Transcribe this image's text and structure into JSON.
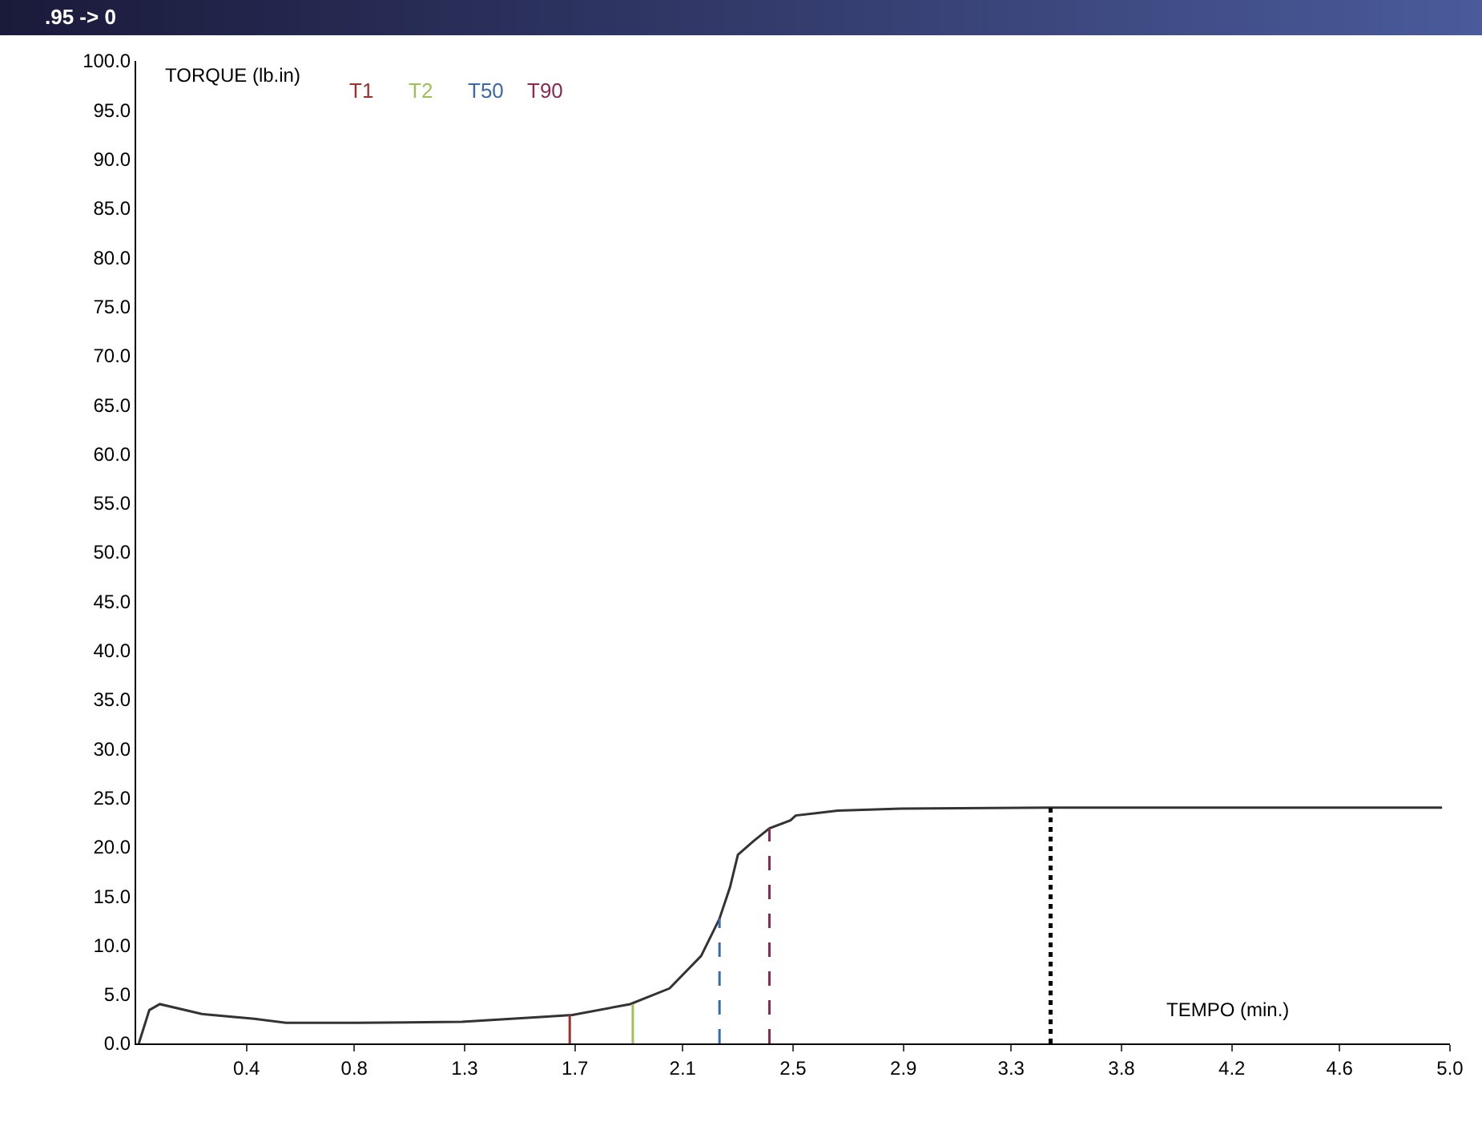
{
  "chart_data": {
    "type": "line",
    "title": ".95 -> 0",
    "xlabel": "TEMPO (min.)",
    "ylabel": "TORQUE (lb.in)",
    "xlim": [
      0,
      5.0
    ],
    "ylim": [
      0,
      100
    ],
    "xticks": [
      {
        "value": 0.42,
        "label": "0.4"
      },
      {
        "value": 0.83,
        "label": "0.8"
      },
      {
        "value": 1.25,
        "label": "1.3"
      },
      {
        "value": 1.67,
        "label": "1.7"
      },
      {
        "value": 2.08,
        "label": "2.1"
      },
      {
        "value": 2.5,
        "label": "2.5"
      },
      {
        "value": 2.92,
        "label": "2.9"
      },
      {
        "value": 3.33,
        "label": "3.3"
      },
      {
        "value": 3.75,
        "label": "3.8"
      },
      {
        "value": 4.17,
        "label": "4.2"
      },
      {
        "value": 4.58,
        "label": "4.6"
      },
      {
        "value": 5.0,
        "label": "5.0"
      }
    ],
    "yticks": [
      {
        "value": 0,
        "label": "0.0"
      },
      {
        "value": 5,
        "label": "5.0"
      },
      {
        "value": 10,
        "label": "10.0"
      },
      {
        "value": 15,
        "label": "15.0"
      },
      {
        "value": 20,
        "label": "20.0"
      },
      {
        "value": 25,
        "label": "25.0"
      },
      {
        "value": 30,
        "label": "30.0"
      },
      {
        "value": 35,
        "label": "35.0"
      },
      {
        "value": 40,
        "label": "40.0"
      },
      {
        "value": 45,
        "label": "45.0"
      },
      {
        "value": 50,
        "label": "50.0"
      },
      {
        "value": 55,
        "label": "55.0"
      },
      {
        "value": 60,
        "label": "60.0"
      },
      {
        "value": 65,
        "label": "65.0"
      },
      {
        "value": 70,
        "label": "70.0"
      },
      {
        "value": 75,
        "label": "75.0"
      },
      {
        "value": 80,
        "label": "80.0"
      },
      {
        "value": 85,
        "label": "85.0"
      },
      {
        "value": 90,
        "label": "90.0"
      },
      {
        "value": 95,
        "label": "95.0"
      },
      {
        "value": 100,
        "label": "100.0"
      }
    ],
    "grid": false,
    "legend": false,
    "marker": "none",
    "line_style": "solid",
    "x": [
      0.01,
      0.05,
      0.09,
      0.25,
      0.45,
      0.57,
      0.84,
      1.24,
      1.54,
      1.66,
      1.88,
      2.03,
      2.15,
      2.22,
      2.26,
      2.29,
      2.35,
      2.41,
      2.49,
      2.51,
      2.67,
      2.91,
      3.48,
      4.1,
      4.97
    ],
    "series": [
      {
        "color": "#333333",
        "values": [
          0,
          3.4,
          4.0,
          3.0,
          2.5,
          2.1,
          2.1,
          2.2,
          2.7,
          2.9,
          4.0,
          5.6,
          8.9,
          12.7,
          15.9,
          19.2,
          20.6,
          21.9,
          22.7,
          23.2,
          23.7,
          23.9,
          24.0,
          24.0,
          24.0
        ]
      },
      {
        "name": "T1",
        "color": "#a03030",
        "line_style": "solid",
        "x": [
          1.65,
          1.65
        ],
        "values": [
          0,
          2.9
        ]
      },
      {
        "name": "T2",
        "color": "#9dc15a",
        "line_style": "solid",
        "x": [
          1.89,
          1.89
        ],
        "values": [
          0,
          4.0
        ]
      },
      {
        "name": "T50",
        "color": "#3a6aa8",
        "line_style": "dashed",
        "x": [
          2.22,
          2.22
        ],
        "values": [
          0,
          12.7
        ]
      },
      {
        "name": "T90",
        "color": "#8a2a50",
        "line_style": "dashed",
        "x": [
          2.41,
          2.41
        ],
        "values": [
          0,
          21.9
        ]
      }
    ],
    "ref_lines": [
      {
        "axis": "x",
        "value": 3.48,
        "color": "#000000",
        "line_style": "dotted"
      }
    ]
  }
}
